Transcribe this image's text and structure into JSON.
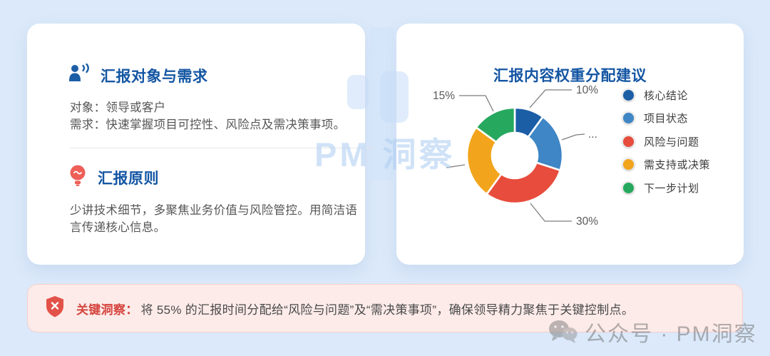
{
  "left_card": {
    "section1": {
      "title": "汇报对象与需求",
      "line1": "对象：领导或客户",
      "line2": "需求：快速掌握项目可控性、风险点及需决策事项。"
    },
    "section2": {
      "title": "汇报原则",
      "body": "少讲技术细节，多聚焦业务价值与风险管控。用简洁语言传递核心信息。"
    }
  },
  "right_card": {
    "title": "汇报内容权重分配建议"
  },
  "chart_data": {
    "type": "pie",
    "subtype": "donut",
    "title": "汇报内容权重分配建议",
    "legend_position": "right",
    "donut_hole_ratio": 0.48,
    "series": [
      {
        "label": "核心结论",
        "value": 10,
        "color": "#1b5ea6",
        "callout": "10%"
      },
      {
        "label": "项目状态",
        "value": 20,
        "color": "#3e86c5",
        "callout": "..."
      },
      {
        "label": "风险与问题",
        "value": 30,
        "color": "#e74c3c",
        "callout": "30%"
      },
      {
        "label": "需支持或决策",
        "value": 25,
        "color": "#f2a51c",
        "callout": ""
      },
      {
        "label": "下一步计划",
        "value": 15,
        "color": "#27a85f",
        "callout": "15%"
      }
    ]
  },
  "insight_banner": {
    "label": "关键洞察：",
    "text": "将 55% 的汇报时间分配给“风险与问题”及“需决策事项”，确保领导精力聚焦于关键控制点。"
  },
  "watermarks": {
    "center_text": "PM 洞察",
    "corner_text": "公众号 · PM洞察"
  }
}
